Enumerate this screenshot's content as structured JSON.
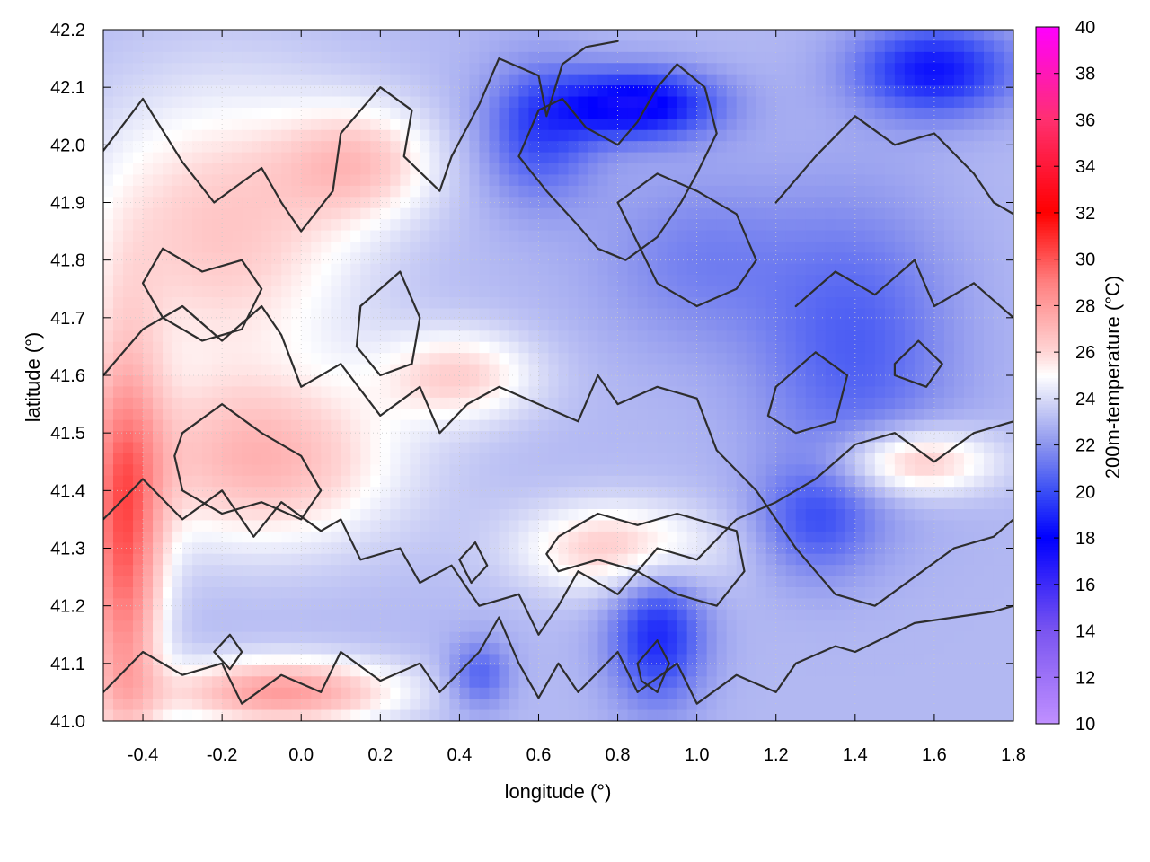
{
  "chart_data": {
    "type": "heatmap",
    "xlabel": "longitude (°)",
    "ylabel": "latitude (°)",
    "colorbar_label": "200m-temperature (°C)",
    "xlim": [
      -0.5,
      1.8
    ],
    "ylim": [
      41.0,
      42.2
    ],
    "x_ticks": [
      "-0.4",
      "-0.2",
      "0.0",
      "0.2",
      "0.4",
      "0.6",
      "0.8",
      "1.0",
      "1.2",
      "1.4",
      "1.6",
      "1.8"
    ],
    "y_ticks": [
      "41.0",
      "41.1",
      "41.2",
      "41.3",
      "41.4",
      "41.5",
      "41.6",
      "41.7",
      "41.8",
      "41.9",
      "42.0",
      "42.1",
      "42.2"
    ],
    "colorbar_range": [
      10,
      40
    ],
    "colorbar_ticks": [
      "10",
      "12",
      "14",
      "16",
      "18",
      "20",
      "22",
      "24",
      "26",
      "28",
      "30",
      "32",
      "34",
      "36",
      "38",
      "40"
    ],
    "colormap": [
      {
        "value": 10,
        "color": "#c090ff"
      },
      {
        "value": 14,
        "color": "#7a55f0"
      },
      {
        "value": 18,
        "color": "#0000ff"
      },
      {
        "value": 20,
        "color": "#3a4ef5"
      },
      {
        "value": 22,
        "color": "#8c95ee"
      },
      {
        "value": 24,
        "color": "#d8dbf7"
      },
      {
        "value": 25,
        "color": "#ffffff"
      },
      {
        "value": 26,
        "color": "#ffd5d5"
      },
      {
        "value": 29,
        "color": "#ff8080"
      },
      {
        "value": 32,
        "color": "#ff0000"
      },
      {
        "value": 36,
        "color": "#ff3070"
      },
      {
        "value": 40,
        "color": "#ff00ff"
      }
    ],
    "temperature_field": {
      "background": 23,
      "features": [
        {
          "lon": -0.2,
          "lat": 41.85,
          "temp": 26.5,
          "spread_lon": 0.35,
          "spread_lat": 0.25
        },
        {
          "lon": -0.1,
          "lat": 41.45,
          "temp": 27.0,
          "spread_lon": 0.35,
          "spread_lat": 0.15
        },
        {
          "lon": -0.45,
          "lat": 41.3,
          "temp": 29.5,
          "spread_lon": 0.1,
          "spread_lat": 0.35
        },
        {
          "lon": -0.05,
          "lat": 41.05,
          "temp": 28.0,
          "spread_lon": 0.3,
          "spread_lat": 0.06
        },
        {
          "lon": 0.15,
          "lat": 41.97,
          "temp": 26.0,
          "spread_lon": 0.2,
          "spread_lat": 0.1
        },
        {
          "lon": 0.4,
          "lat": 41.6,
          "temp": 26.0,
          "spread_lon": 0.2,
          "spread_lat": 0.08
        },
        {
          "lon": 0.8,
          "lat": 41.3,
          "temp": 26.5,
          "spread_lon": 0.25,
          "spread_lat": 0.08
        },
        {
          "lon": 1.55,
          "lat": 41.45,
          "temp": 27.0,
          "spread_lon": 0.2,
          "spread_lat": 0.06
        },
        {
          "lon": 0.85,
          "lat": 42.07,
          "temp": 17.5,
          "spread_lon": 0.2,
          "spread_lat": 0.06
        },
        {
          "lon": 0.6,
          "lat": 42.02,
          "temp": 20.0,
          "spread_lon": 0.15,
          "spread_lat": 0.12
        },
        {
          "lon": 1.6,
          "lat": 42.13,
          "temp": 18.5,
          "spread_lon": 0.2,
          "spread_lat": 0.08
        },
        {
          "lon": 1.4,
          "lat": 41.65,
          "temp": 20.5,
          "spread_lon": 0.25,
          "spread_lat": 0.25
        },
        {
          "lon": 0.9,
          "lat": 41.15,
          "temp": 19.0,
          "spread_lon": 0.12,
          "spread_lat": 0.12
        },
        {
          "lon": 1.3,
          "lat": 41.35,
          "temp": 20.5,
          "spread_lon": 0.15,
          "spread_lat": 0.1
        },
        {
          "lon": 0.45,
          "lat": 41.08,
          "temp": 20.5,
          "spread_lon": 0.08,
          "spread_lat": 0.06
        },
        {
          "lon": 1.0,
          "lat": 41.8,
          "temp": 21.5,
          "spread_lon": 0.25,
          "spread_lat": 0.15
        }
      ]
    },
    "contours": [
      [
        [
          -0.5,
          41.99
        ],
        [
          -0.4,
          42.08
        ],
        [
          -0.3,
          41.97
        ],
        [
          -0.22,
          41.9
        ],
        [
          -0.1,
          41.96
        ],
        [
          -0.05,
          41.9
        ],
        [
          0.0,
          41.85
        ],
        [
          0.08,
          41.92
        ],
        [
          0.1,
          42.02
        ],
        [
          0.2,
          42.1
        ],
        [
          0.28,
          42.06
        ],
        [
          0.26,
          41.98
        ],
        [
          0.35,
          41.92
        ],
        [
          0.38,
          41.98
        ],
        [
          0.45,
          42.07
        ],
        [
          0.5,
          42.15
        ],
        [
          0.6,
          42.12
        ],
        [
          0.62,
          42.05
        ],
        [
          0.66,
          42.14
        ],
        [
          0.72,
          42.17
        ],
        [
          0.8,
          42.18
        ]
      ],
      [
        [
          -0.5,
          41.6
        ],
        [
          -0.4,
          41.68
        ],
        [
          -0.3,
          41.72
        ],
        [
          -0.2,
          41.66
        ],
        [
          -0.1,
          41.72
        ],
        [
          -0.05,
          41.67
        ],
        [
          0.0,
          41.58
        ],
        [
          0.1,
          41.62
        ],
        [
          0.2,
          41.53
        ],
        [
          0.3,
          41.58
        ],
        [
          0.35,
          41.5
        ],
        [
          0.42,
          41.55
        ],
        [
          0.5,
          41.58
        ],
        [
          0.6,
          41.55
        ],
        [
          0.7,
          41.52
        ],
        [
          0.75,
          41.6
        ],
        [
          0.8,
          41.55
        ],
        [
          0.9,
          41.58
        ],
        [
          1.0,
          41.56
        ],
        [
          1.05,
          41.47
        ],
        [
          1.15,
          41.4
        ],
        [
          1.25,
          41.3
        ],
        [
          1.35,
          41.22
        ],
        [
          1.45,
          41.2
        ],
        [
          1.55,
          41.25
        ],
        [
          1.65,
          41.3
        ],
        [
          1.75,
          41.32
        ],
        [
          1.8,
          41.35
        ]
      ],
      [
        [
          -0.5,
          41.35
        ],
        [
          -0.4,
          41.42
        ],
        [
          -0.3,
          41.35
        ],
        [
          -0.2,
          41.4
        ],
        [
          -0.12,
          41.32
        ],
        [
          -0.05,
          41.38
        ],
        [
          0.05,
          41.33
        ],
        [
          0.1,
          41.35
        ],
        [
          0.15,
          41.28
        ],
        [
          0.25,
          41.3
        ],
        [
          0.3,
          41.24
        ],
        [
          0.38,
          41.27
        ],
        [
          0.45,
          41.2
        ],
        [
          0.55,
          41.22
        ],
        [
          0.6,
          41.15
        ],
        [
          0.65,
          41.2
        ],
        [
          0.7,
          41.26
        ],
        [
          0.8,
          41.22
        ],
        [
          0.9,
          41.3
        ],
        [
          1.0,
          41.28
        ],
        [
          1.1,
          41.35
        ],
        [
          1.2,
          41.38
        ],
        [
          1.3,
          41.42
        ],
        [
          1.4,
          41.48
        ],
        [
          1.5,
          41.5
        ],
        [
          1.6,
          41.45
        ],
        [
          1.7,
          41.5
        ],
        [
          1.8,
          41.52
        ]
      ],
      [
        [
          -0.5,
          41.05
        ],
        [
          -0.4,
          41.12
        ],
        [
          -0.3,
          41.08
        ],
        [
          -0.2,
          41.1
        ],
        [
          -0.15,
          41.03
        ],
        [
          -0.05,
          41.08
        ],
        [
          0.05,
          41.05
        ],
        [
          0.1,
          41.12
        ],
        [
          0.2,
          41.07
        ],
        [
          0.3,
          41.1
        ],
        [
          0.35,
          41.05
        ],
        [
          0.45,
          41.12
        ],
        [
          0.5,
          41.18
        ],
        [
          0.55,
          41.1
        ],
        [
          0.6,
          41.04
        ],
        [
          0.65,
          41.1
        ],
        [
          0.7,
          41.05
        ],
        [
          0.8,
          41.12
        ],
        [
          0.85,
          41.05
        ],
        [
          0.95,
          41.1
        ],
        [
          1.0,
          41.03
        ],
        [
          1.1,
          41.08
        ],
        [
          1.2,
          41.05
        ],
        [
          1.25,
          41.1
        ],
        [
          1.35,
          41.13
        ],
        [
          1.4,
          41.12
        ],
        [
          1.55,
          41.17
        ],
        [
          1.65,
          41.18
        ],
        [
          1.75,
          41.19
        ],
        [
          1.8,
          41.2
        ]
      ],
      [
        [
          0.55,
          41.98
        ],
        [
          0.62,
          41.92
        ],
        [
          0.7,
          41.86
        ],
        [
          0.75,
          41.82
        ],
        [
          0.82,
          41.8
        ],
        [
          0.9,
          41.84
        ],
        [
          0.96,
          41.9
        ],
        [
          1.0,
          41.95
        ],
        [
          1.05,
          42.02
        ],
        [
          1.02,
          42.1
        ],
        [
          0.95,
          42.14
        ],
        [
          0.9,
          42.1
        ],
        [
          0.85,
          42.04
        ],
        [
          0.8,
          42.0
        ],
        [
          0.72,
          42.03
        ],
        [
          0.66,
          42.08
        ],
        [
          0.6,
          42.06
        ],
        [
          0.55,
          41.98
        ]
      ],
      [
        [
          0.8,
          41.9
        ],
        [
          0.9,
          41.76
        ],
        [
          1.0,
          41.72
        ],
        [
          1.1,
          41.75
        ],
        [
          1.15,
          41.8
        ],
        [
          1.1,
          41.88
        ],
        [
          1.0,
          41.92
        ],
        [
          0.9,
          41.95
        ],
        [
          0.8,
          41.9
        ]
      ],
      [
        [
          1.2,
          41.9
        ],
        [
          1.3,
          41.98
        ],
        [
          1.4,
          42.05
        ],
        [
          1.5,
          42.0
        ],
        [
          1.6,
          42.02
        ],
        [
          1.7,
          41.95
        ],
        [
          1.75,
          41.9
        ],
        [
          1.8,
          41.88
        ]
      ],
      [
        [
          1.25,
          41.72
        ],
        [
          1.35,
          41.78
        ],
        [
          1.45,
          41.74
        ],
        [
          1.55,
          41.8
        ],
        [
          1.6,
          41.72
        ],
        [
          1.7,
          41.76
        ],
        [
          1.8,
          41.7
        ]
      ],
      [
        [
          -0.35,
          41.82
        ],
        [
          -0.25,
          41.78
        ],
        [
          -0.15,
          41.8
        ],
        [
          -0.1,
          41.75
        ],
        [
          -0.15,
          41.68
        ],
        [
          -0.25,
          41.66
        ],
        [
          -0.35,
          41.7
        ],
        [
          -0.4,
          41.76
        ],
        [
          -0.35,
          41.82
        ]
      ],
      [
        [
          -0.3,
          41.5
        ],
        [
          -0.2,
          41.55
        ],
        [
          -0.1,
          41.5
        ],
        [
          0.0,
          41.46
        ],
        [
          0.05,
          41.4
        ],
        [
          0.0,
          41.35
        ],
        [
          -0.1,
          41.38
        ],
        [
          -0.2,
          41.36
        ],
        [
          -0.3,
          41.4
        ],
        [
          -0.32,
          41.46
        ],
        [
          -0.3,
          41.5
        ]
      ],
      [
        [
          0.15,
          41.72
        ],
        [
          0.25,
          41.78
        ],
        [
          0.3,
          41.7
        ],
        [
          0.28,
          41.62
        ],
        [
          0.2,
          41.6
        ],
        [
          0.14,
          41.65
        ],
        [
          0.15,
          41.72
        ]
      ],
      [
        [
          0.65,
          41.32
        ],
        [
          0.75,
          41.36
        ],
        [
          0.85,
          41.34
        ],
        [
          0.95,
          41.36
        ],
        [
          1.1,
          41.33
        ],
        [
          1.12,
          41.26
        ],
        [
          1.05,
          41.2
        ],
        [
          0.95,
          41.22
        ],
        [
          0.85,
          41.26
        ],
        [
          0.75,
          41.28
        ],
        [
          0.65,
          41.26
        ],
        [
          0.62,
          41.29
        ],
        [
          0.65,
          41.32
        ]
      ],
      [
        [
          1.2,
          41.58
        ],
        [
          1.3,
          41.64
        ],
        [
          1.38,
          41.6
        ],
        [
          1.35,
          41.52
        ],
        [
          1.25,
          41.5
        ],
        [
          1.18,
          41.53
        ],
        [
          1.2,
          41.58
        ]
      ],
      [
        [
          -0.22,
          41.12
        ],
        [
          -0.18,
          41.15
        ],
        [
          -0.15,
          41.12
        ],
        [
          -0.18,
          41.09
        ],
        [
          -0.22,
          41.12
        ]
      ],
      [
        [
          0.85,
          41.1
        ],
        [
          0.9,
          41.14
        ],
        [
          0.93,
          41.1
        ],
        [
          0.9,
          41.05
        ],
        [
          0.86,
          41.07
        ],
        [
          0.85,
          41.1
        ]
      ],
      [
        [
          1.5,
          41.62
        ],
        [
          1.56,
          41.66
        ],
        [
          1.62,
          41.62
        ],
        [
          1.58,
          41.58
        ],
        [
          1.5,
          41.6
        ],
        [
          1.5,
          41.62
        ]
      ],
      [
        [
          0.4,
          41.28
        ],
        [
          0.44,
          41.31
        ],
        [
          0.47,
          41.27
        ],
        [
          0.43,
          41.24
        ],
        [
          0.4,
          41.28
        ]
      ]
    ]
  }
}
